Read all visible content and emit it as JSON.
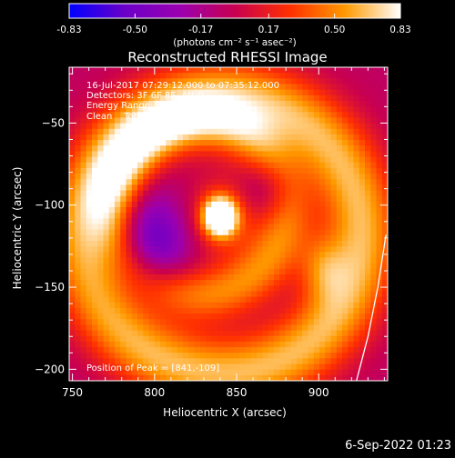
{
  "colorbar": {
    "tick_labels": [
      "-0.83",
      "-0.50",
      "-0.17",
      "0.17",
      "0.50",
      "0.83"
    ],
    "unit_label": "(photons cm⁻² s⁻¹ asec⁻²)",
    "range": [
      -0.83,
      0.83
    ],
    "stops": [
      "#0000ff",
      "#6a00c8",
      "#9b00b0",
      "#c80050",
      "#ff3000",
      "#ff9a00",
      "#ffffff"
    ]
  },
  "title": "Reconstructed RHESSI Image",
  "info": {
    "time_range": "16-Jul-2017 07:29:12.000 to 07:35:12.000",
    "detectors": "Detectors: 3F 6F 8F, Att 0",
    "energy": "Energy Range: 3.0 - 6.0 keV",
    "clean": "Clean    Total counts: 6.60E+04"
  },
  "peak_label": "Position of Peak = [841,-109]",
  "footer_date": "6-Sep-2022 01:23",
  "chart_data": {
    "type": "heatmap",
    "title": "Reconstructed RHESSI Image",
    "xlabel": "Heliocentric X (arcsec)",
    "ylabel": "Heliocentric Y (arcsec)",
    "xlim": [
      748,
      942
    ],
    "ylim": [
      -207,
      -16
    ],
    "x_ticks": [
      750,
      800,
      850,
      900
    ],
    "y_ticks": [
      -50,
      -100,
      -150,
      -200
    ],
    "peak": [
      841,
      -109
    ],
    "features": [
      {
        "name": "source",
        "x": 840,
        "y": -107,
        "sx": 7,
        "sy": 8,
        "amp": 1.25
      },
      {
        "name": "halo",
        "x": 842,
        "y": -108,
        "sx": 18,
        "sy": 18,
        "amp": 0.35
      },
      {
        "name": "ring",
        "x": 828,
        "y": -102,
        "r": 52,
        "w": 12,
        "amp": 0.55
      },
      {
        "name": "outer_arc",
        "x": 842,
        "y": -118,
        "r": 84,
        "w": 16,
        "amp": 0.7
      },
      {
        "name": "arc_hot",
        "x": 902,
        "y": -138,
        "sx": 10,
        "sy": 14,
        "amp": 0.35
      },
      {
        "name": "trough_left",
        "x": 795,
        "y": -125,
        "sx": 18,
        "sy": 22,
        "amp": -0.65
      },
      {
        "name": "trough_inner",
        "x": 870,
        "y": -90,
        "sx": 12,
        "sy": 14,
        "amp": -0.35
      }
    ],
    "limb": {
      "x": [
        923,
        930,
        936,
        941
      ],
      "y": [
        -207,
        -180,
        -150,
        -118
      ]
    }
  }
}
